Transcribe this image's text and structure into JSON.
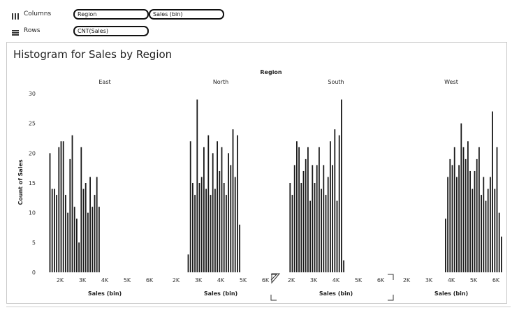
{
  "shelves": {
    "columns": {
      "label": "Columns",
      "pills": [
        "Region",
        "Sales (bin)"
      ]
    },
    "rows": {
      "label": "Rows",
      "pills": [
        "CNT(Sales)"
      ]
    }
  },
  "worksheet": {
    "title": "Histogram for Sales by Region"
  },
  "chart_data": {
    "type": "bar",
    "title": "Histogram for Sales by Region",
    "column_header": "Region",
    "xlabel": "Sales (bin)",
    "ylabel": "Count of Sales",
    "ylim": [
      0,
      30
    ],
    "yticks": [
      0,
      5,
      10,
      15,
      20,
      25,
      30
    ],
    "xticks": [
      "2K",
      "3K",
      "4K",
      "5K",
      "6K"
    ],
    "xlim": [
      1500,
      6500
    ],
    "bin_width": 100,
    "panels": [
      {
        "name": "East",
        "x": [
          1500,
          1600,
          1700,
          1800,
          1900,
          2000,
          2100,
          2200,
          2300,
          2400,
          2500,
          2600,
          2700,
          2800,
          2900,
          3000,
          3100,
          3200,
          3300,
          3400,
          3500,
          3600,
          3700,
          3800,
          3900,
          4000,
          4100,
          4200,
          4300,
          4400,
          4500,
          4600,
          4700
        ],
        "values": [
          20,
          14,
          14,
          13,
          21,
          22,
          22,
          13,
          10,
          19,
          23,
          11,
          9,
          5,
          21,
          14,
          15,
          10,
          16,
          11,
          13,
          16,
          11,
          0,
          0,
          0,
          0,
          0,
          0,
          0,
          0,
          0,
          0
        ]
      },
      {
        "name": "North",
        "x": [
          2500,
          2600,
          2700,
          2800,
          2900,
          3000,
          3100,
          3200,
          3300,
          3400,
          3500,
          3600,
          3700,
          3800,
          3900,
          4000,
          4100,
          4200,
          4300,
          4400,
          4500,
          4600,
          4700,
          4800,
          4900,
          5000
        ],
        "values": [
          3,
          22,
          15,
          13,
          29,
          15,
          16,
          21,
          14,
          23,
          13,
          20,
          14,
          22,
          17,
          21,
          15,
          13,
          20,
          18,
          24,
          16,
          23,
          8,
          0,
          0
        ]
      },
      {
        "name": "South",
        "x": [
          1900,
          2000,
          2100,
          2200,
          2300,
          2400,
          2500,
          2600,
          2700,
          2800,
          2900,
          3000,
          3100,
          3200,
          3300,
          3400,
          3500,
          3600,
          3700,
          3800,
          3900,
          4000,
          4100,
          4200,
          4300,
          4400,
          4500,
          4600,
          4700,
          4800
        ],
        "values": [
          15,
          13,
          18,
          22,
          21,
          15,
          17,
          19,
          21,
          12,
          18,
          15,
          18,
          21,
          14,
          18,
          13,
          16,
          22,
          18,
          24,
          12,
          23,
          29,
          2,
          0,
          0,
          0,
          0,
          0
        ],
        "annotation": "Sales (bin)"
      },
      {
        "name": "West",
        "x": [
          3700,
          3800,
          3900,
          4000,
          4100,
          4200,
          4300,
          4400,
          4500,
          4600,
          4700,
          4800,
          4900,
          5000,
          5100,
          5200,
          5300,
          5400,
          5500,
          5600,
          5700,
          5800,
          5900,
          6000,
          6100,
          6200
        ],
        "values": [
          9,
          16,
          19,
          18,
          21,
          16,
          18,
          25,
          21,
          19,
          22,
          17,
          14,
          17,
          19,
          21,
          13,
          16,
          12,
          14,
          16,
          27,
          14,
          21,
          10,
          6
        ]
      }
    ]
  }
}
